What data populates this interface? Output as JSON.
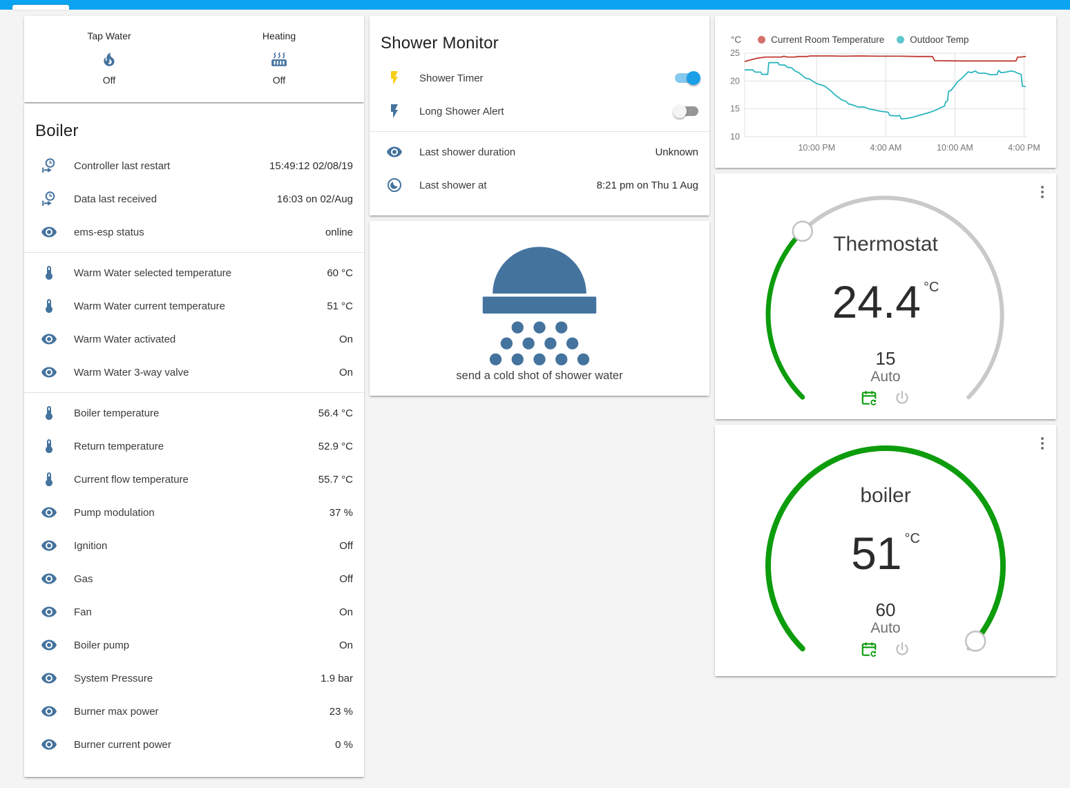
{
  "colors": {
    "header": "#0aa4f1",
    "icon_accent": "#44739e",
    "flash_yellow": "#f7cf18",
    "toggle_on_thumb": "#1b9fe8",
    "toggle_on_track": "#85c9ef",
    "dial_green": "#0c9c0c",
    "dial_gray": "#c9c9c9",
    "power_gray": "#bdbdbd",
    "calendar_green": "#0b9b0b"
  },
  "glance_card": {
    "items": [
      {
        "label": "Tap Water",
        "icon": "fire-icon",
        "state": "Off"
      },
      {
        "label": "Heating",
        "icon": "radiator-icon",
        "state": "Off"
      }
    ]
  },
  "boiler_card": {
    "title": "Boiler",
    "sections": [
      [
        {
          "icon": "clock-start",
          "label": "Controller last restart",
          "value": "15:49:12 02/08/19"
        },
        {
          "icon": "clock-start",
          "label": "Data last received",
          "value": "16:03 on 02/Aug"
        },
        {
          "icon": "eye",
          "label": "ems-esp status",
          "value": "online"
        }
      ],
      [
        {
          "icon": "thermometer",
          "label": "Warm Water selected temperature",
          "value": "60 °C"
        },
        {
          "icon": "thermometer",
          "label": "Warm Water current temperature",
          "value": "51 °C"
        },
        {
          "icon": "eye",
          "label": "Warm Water activated",
          "value": "On"
        },
        {
          "icon": "eye",
          "label": "Warm Water 3-way valve",
          "value": "On"
        }
      ],
      [
        {
          "icon": "thermometer",
          "label": "Boiler temperature",
          "value": "56.4 °C"
        },
        {
          "icon": "thermometer",
          "label": "Return temperature",
          "value": "52.9 °C"
        },
        {
          "icon": "thermometer",
          "label": "Current flow temperature",
          "value": "55.7 °C"
        },
        {
          "icon": "eye",
          "label": "Pump modulation",
          "value": "37 %"
        },
        {
          "icon": "eye",
          "label": "Ignition",
          "value": "Off"
        },
        {
          "icon": "eye",
          "label": "Gas",
          "value": "Off"
        },
        {
          "icon": "eye",
          "label": "Fan",
          "value": "On"
        },
        {
          "icon": "eye",
          "label": "Boiler pump",
          "value": "On"
        },
        {
          "icon": "eye",
          "label": "System Pressure",
          "value": "1.9 bar"
        },
        {
          "icon": "eye",
          "label": "Burner max power",
          "value": "23 %"
        },
        {
          "icon": "eye",
          "label": "Burner current power",
          "value": "0 %"
        }
      ]
    ]
  },
  "shower_card": {
    "title": "Shower Monitor",
    "toggles": [
      {
        "icon": "flash",
        "icon_color": "#f7cf18",
        "label": "Shower Timer",
        "on": true
      },
      {
        "icon": "flash",
        "icon_color": "#44739e",
        "label": "Long Shower Alert",
        "on": false
      }
    ],
    "rows": [
      {
        "icon": "eye",
        "label": "Last shower duration",
        "value": "Unknown"
      },
      {
        "icon": "moon-circle",
        "label": "Last shower at",
        "value": "8:21 pm on Thu 1 Aug"
      }
    ]
  },
  "shower_button_card": {
    "label": "send a cold shot of shower water"
  },
  "chart_data": {
    "type": "line",
    "title": "",
    "ylabel": "°C",
    "ylim": [
      10,
      25
    ],
    "yticks": [
      10,
      15,
      20,
      25
    ],
    "xlim": [
      0,
      24.4
    ],
    "xticks": [
      {
        "x": 6.25,
        "label": "10:00 PM"
      },
      {
        "x": 12.25,
        "label": "4:00 AM"
      },
      {
        "x": 18.25,
        "label": "10:00 AM"
      },
      {
        "x": 24.25,
        "label": "4:00 PM"
      }
    ],
    "grid": true,
    "legend_position": "top",
    "series": [
      {
        "name": "Current Room Temperature",
        "color": "#bf3a31",
        "legend_dot": "#d5716b",
        "points": [
          [
            0,
            23.5
          ],
          [
            0.5,
            23.8
          ],
          [
            1.1,
            24.1
          ],
          [
            1.8,
            24.3
          ],
          [
            3.2,
            24.3
          ],
          [
            3.4,
            24.45
          ],
          [
            3.7,
            24.3
          ],
          [
            4.4,
            24.3
          ],
          [
            4.6,
            24.4
          ],
          [
            5.4,
            24.4
          ],
          [
            5.7,
            24.5
          ],
          [
            7.5,
            24.5
          ],
          [
            8.5,
            24.45
          ],
          [
            10,
            24.5
          ],
          [
            11.5,
            24.45
          ],
          [
            13.5,
            24.45
          ],
          [
            15,
            24.4
          ],
          [
            16.3,
            24.4
          ],
          [
            16.5,
            23.65
          ],
          [
            19,
            23.6
          ],
          [
            23.55,
            23.6
          ],
          [
            23.7,
            24.3
          ],
          [
            24.0,
            24.3
          ],
          [
            24.4,
            24.4
          ]
        ]
      },
      {
        "name": "Outdoor Temp",
        "color": "#2bb5bd",
        "legend_dot": "#5ec6cd",
        "points": [
          [
            0,
            22
          ],
          [
            0.7,
            22
          ],
          [
            0.9,
            21.6
          ],
          [
            1.4,
            21.6
          ],
          [
            1.5,
            21.2
          ],
          [
            2.0,
            21.2
          ],
          [
            2.1,
            23.3
          ],
          [
            2.9,
            23.3
          ],
          [
            3.0,
            22.9
          ],
          [
            3.5,
            22.85
          ],
          [
            3.7,
            22.5
          ],
          [
            4.1,
            22.35
          ],
          [
            4.3,
            21.9
          ],
          [
            4.7,
            21.5
          ],
          [
            5.0,
            21.0
          ],
          [
            5.3,
            20.5
          ],
          [
            5.65,
            20.35
          ],
          [
            5.95,
            19.9
          ],
          [
            6.3,
            19.5
          ],
          [
            6.9,
            19.15
          ],
          [
            7.2,
            18.7
          ],
          [
            7.5,
            18.2
          ],
          [
            7.8,
            17.6
          ],
          [
            8.1,
            17.1
          ],
          [
            8.45,
            16.6
          ],
          [
            8.8,
            16.35
          ],
          [
            9.0,
            15.9
          ],
          [
            9.4,
            15.7
          ],
          [
            9.8,
            15.35
          ],
          [
            10.4,
            15.3
          ],
          [
            10.8,
            15.0
          ],
          [
            11.3,
            14.8
          ],
          [
            11.7,
            14.6
          ],
          [
            12.1,
            14.5
          ],
          [
            12.45,
            14.4
          ],
          [
            12.6,
            13.8
          ],
          [
            13.2,
            13.75
          ],
          [
            13.45,
            13.8
          ],
          [
            13.6,
            13.2
          ],
          [
            14.1,
            13.3
          ],
          [
            14.6,
            13.5
          ],
          [
            15.1,
            13.8
          ],
          [
            15.6,
            14.1
          ],
          [
            16.1,
            14.4
          ],
          [
            16.6,
            14.8
          ],
          [
            17.0,
            15.2
          ],
          [
            17.35,
            15.5
          ],
          [
            17.45,
            16.3
          ],
          [
            17.6,
            16.4
          ],
          [
            17.7,
            18.1
          ],
          [
            17.95,
            18.4
          ],
          [
            18.2,
            19.1
          ],
          [
            18.5,
            19.9
          ],
          [
            18.8,
            20.4
          ],
          [
            19.1,
            21.0
          ],
          [
            19.4,
            21.65
          ],
          [
            19.7,
            21.5
          ],
          [
            20.0,
            21.8
          ],
          [
            20.3,
            21.4
          ],
          [
            20.9,
            21.4
          ],
          [
            21.3,
            21.15
          ],
          [
            21.9,
            21.15
          ],
          [
            22.05,
            21.9
          ],
          [
            22.25,
            21.5
          ],
          [
            22.7,
            21.6
          ],
          [
            23.1,
            21.8
          ],
          [
            23.4,
            21.7
          ],
          [
            23.7,
            21.4
          ],
          [
            24.0,
            21.2
          ],
          [
            24.1,
            19.1
          ],
          [
            24.4,
            19.0
          ]
        ]
      }
    ]
  },
  "thermostat_card": {
    "title": "Thermostat",
    "value": "24.4",
    "unit": "°C",
    "setpoint": "15",
    "mode": "Auto"
  },
  "boiler_dial_card": {
    "title": "boiler",
    "value": "51",
    "unit": "°C",
    "setpoint": "60",
    "mode": "Auto"
  }
}
